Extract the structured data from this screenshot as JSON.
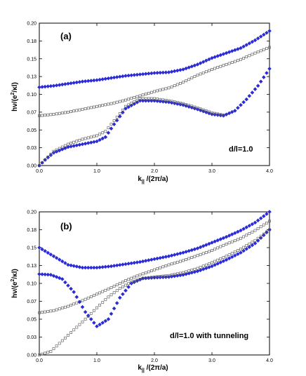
{
  "chart_data": [
    {
      "type": "scatter",
      "panel_label": "(a)",
      "annotation": "d/l=1.0",
      "xlabel": "k|| /(2π/a)",
      "ylabel": "hν/(e²/κl)",
      "xlim": [
        0,
        4
      ],
      "ylim": [
        0,
        0.2
      ],
      "x_ticks": [
        "0.0",
        "1.0",
        "2.0",
        "3.0",
        "4.0"
      ],
      "y_ticks": [
        "0.00",
        "0.03",
        "0.05",
        "0.07",
        "0.10",
        "0.13",
        "0.15",
        "0.18",
        "0.20"
      ],
      "series": [
        {
          "marker": "filled-diamond",
          "color": "#2b2bd6",
          "x": [
            0.0,
            0.25,
            0.5,
            0.75,
            1.0,
            1.25,
            1.5,
            1.75,
            2.0,
            2.25,
            2.5,
            2.75,
            3.0,
            3.25,
            3.5,
            3.75,
            4.0
          ],
          "y": [
            0.11,
            0.112,
            0.115,
            0.118,
            0.12,
            0.123,
            0.126,
            0.128,
            0.13,
            0.131,
            0.135,
            0.142,
            0.151,
            0.158,
            0.165,
            0.176,
            0.189
          ]
        },
        {
          "marker": "open-square",
          "color": "#555555",
          "x": [
            0.0,
            0.25,
            0.5,
            0.75,
            1.0,
            1.25,
            1.5,
            1.75,
            2.0,
            2.25,
            2.5,
            2.75,
            3.0,
            3.25,
            3.5,
            3.75,
            4.0
          ],
          "y": [
            0.07,
            0.072,
            0.075,
            0.079,
            0.083,
            0.087,
            0.092,
            0.098,
            0.104,
            0.109,
            0.117,
            0.127,
            0.135,
            0.142,
            0.149,
            0.158,
            0.166
          ]
        },
        {
          "marker": "filled-diamond",
          "color": "#2b2bd6",
          "x": [
            0.0,
            0.1,
            0.25,
            0.5,
            0.75,
            1.0,
            1.15,
            1.3,
            1.5,
            1.75,
            2.0,
            2.25,
            2.5,
            2.75,
            3.0,
            3.2,
            3.4,
            3.6,
            3.8,
            4.0
          ],
          "y": [
            0.0,
            0.008,
            0.018,
            0.026,
            0.03,
            0.034,
            0.04,
            0.058,
            0.08,
            0.091,
            0.091,
            0.089,
            0.085,
            0.079,
            0.072,
            0.07,
            0.077,
            0.093,
            0.112,
            0.136
          ]
        },
        {
          "marker": "open-square",
          "color": "#555555",
          "x": [
            0.0,
            0.1,
            0.25,
            0.5,
            0.75,
            1.0,
            1.15,
            1.3,
            1.5,
            1.75,
            2.0,
            2.25,
            2.5,
            2.75,
            3.0,
            3.2
          ],
          "y": [
            0.0,
            0.008,
            0.02,
            0.03,
            0.037,
            0.042,
            0.048,
            0.063,
            0.083,
            0.094,
            0.094,
            0.091,
            0.087,
            0.081,
            0.074,
            0.071
          ]
        }
      ]
    },
    {
      "type": "scatter",
      "panel_label": "(b)",
      "annotation": "d/l=1.0 with tunneling",
      "xlabel": "k|| /(2π/a)",
      "ylabel": "hν/(e²/κl)",
      "xlim": [
        0,
        4
      ],
      "ylim": [
        0,
        0.2
      ],
      "x_ticks": [
        "0.0",
        "1.0",
        "2.0",
        "3.0",
        "4.0"
      ],
      "y_ticks": [
        "0.00",
        "0.03",
        "0.05",
        "0.07",
        "0.10",
        "0.13",
        "0.15",
        "0.18",
        "0.20"
      ],
      "series": [
        {
          "marker": "filled-diamond",
          "color": "#2b2bd6",
          "x": [
            0.0,
            0.25,
            0.5,
            0.75,
            1.0,
            1.25,
            1.5,
            1.75,
            2.0,
            2.25,
            2.5,
            2.75,
            3.0,
            3.25,
            3.5,
            3.75,
            4.0
          ],
          "y": [
            0.15,
            0.138,
            0.126,
            0.122,
            0.122,
            0.124,
            0.127,
            0.13,
            0.134,
            0.138,
            0.143,
            0.149,
            0.157,
            0.165,
            0.174,
            0.185,
            0.2
          ]
        },
        {
          "marker": "open-square",
          "color": "#555555",
          "x": [
            0.0,
            0.25,
            0.5,
            0.75,
            1.0,
            1.25,
            1.5,
            1.75,
            2.0,
            2.25,
            2.5,
            2.75,
            3.0,
            3.25,
            3.5,
            3.75,
            4.0
          ],
          "y": [
            0.059,
            0.062,
            0.068,
            0.076,
            0.085,
            0.094,
            0.104,
            0.112,
            0.119,
            0.126,
            0.132,
            0.139,
            0.146,
            0.155,
            0.163,
            0.174,
            0.187
          ]
        },
        {
          "marker": "filled-diamond",
          "color": "#2b2bd6",
          "x": [
            0.0,
            0.2,
            0.4,
            0.6,
            0.8,
            1.0,
            1.2,
            1.4,
            1.6,
            1.8,
            2.0,
            2.25,
            2.5,
            2.75,
            3.0,
            3.25,
            3.5,
            3.75,
            4.0
          ],
          "y": [
            0.113,
            0.112,
            0.106,
            0.088,
            0.06,
            0.04,
            0.05,
            0.08,
            0.1,
            0.107,
            0.108,
            0.109,
            0.112,
            0.117,
            0.124,
            0.133,
            0.143,
            0.156,
            0.175
          ]
        },
        {
          "marker": "open-square",
          "color": "#555555",
          "x": [
            0.0,
            0.2,
            0.4,
            0.6,
            0.8,
            1.0,
            1.2,
            1.4,
            1.6,
            1.8,
            2.0,
            2.25,
            2.5,
            2.75,
            3.0,
            3.25,
            3.5,
            3.75,
            4.0
          ],
          "y": [
            0.0,
            0.005,
            0.02,
            0.035,
            0.05,
            0.066,
            0.081,
            0.093,
            0.102,
            0.107,
            0.109,
            0.111,
            0.115,
            0.121,
            0.129,
            0.138,
            0.148,
            0.16,
            0.175
          ]
        }
      ]
    }
  ]
}
